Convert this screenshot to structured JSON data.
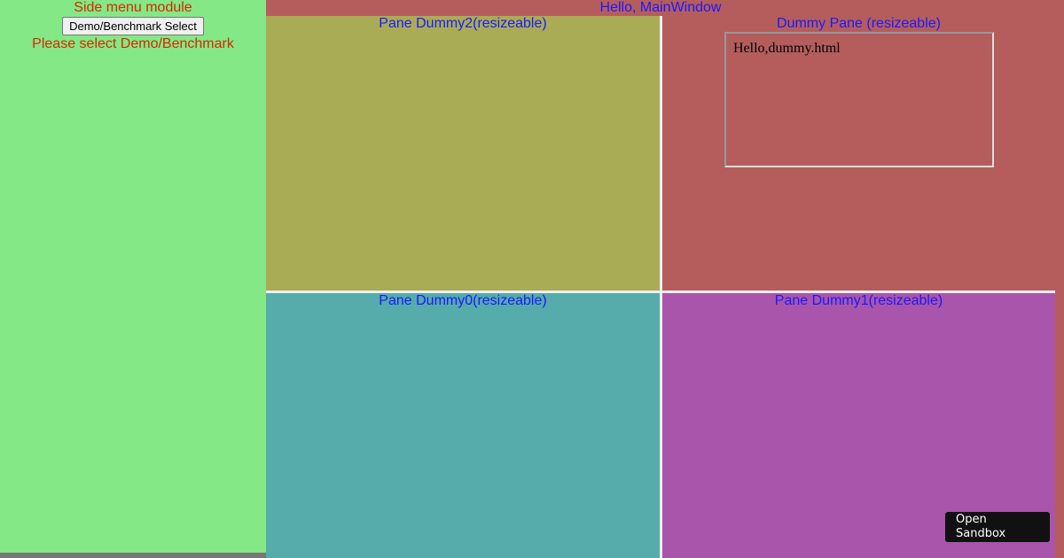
{
  "side_menu": {
    "title": "Side menu module",
    "button": "Demo/Benchmark Select",
    "message": "Please select Demo/Benchmark"
  },
  "main_window": {
    "title": "Hello, MainWindow"
  },
  "panes": {
    "top_left": "Pane Dummy2(resizeable)",
    "top_right": "Dummy Pane (resizeable)",
    "bottom_left": "Pane Dummy0(resizeable)",
    "bottom_right": "Pane Dummy1(resizeable)"
  },
  "iframe": {
    "text": "Hello,dummy.html"
  },
  "sandbox_button": "Open Sandbox"
}
